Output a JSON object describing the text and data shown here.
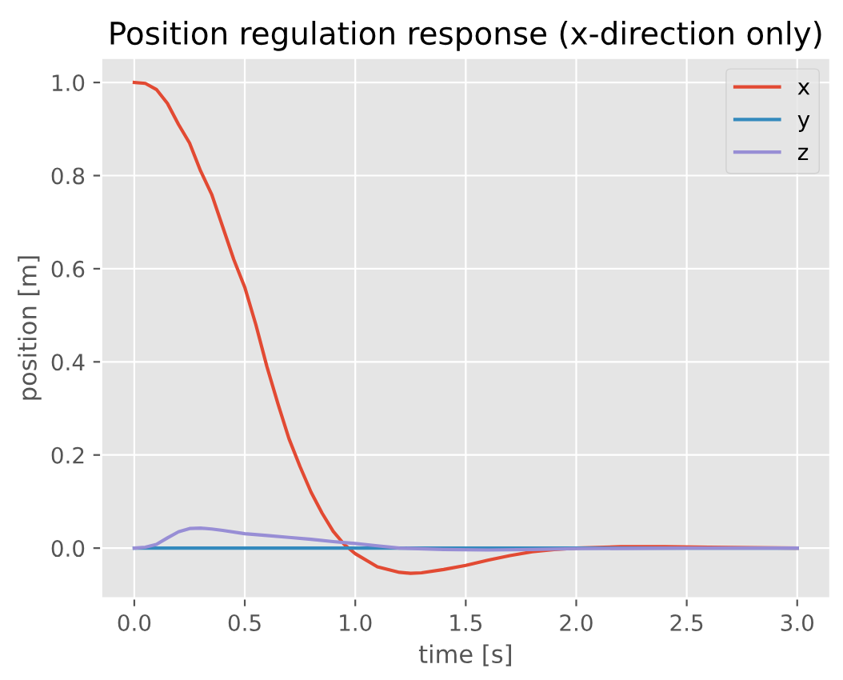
{
  "chart_data": {
    "type": "line",
    "title": "Position regulation response (x-direction only)",
    "xlabel": "time [s]",
    "ylabel": "position [m]",
    "series": [
      {
        "name": "x",
        "color": "#e24a33",
        "x": [
          0,
          0.05,
          0.1,
          0.15,
          0.2,
          0.25,
          0.3,
          0.35,
          0.4,
          0.45,
          0.5,
          0.55,
          0.6,
          0.65,
          0.7,
          0.75,
          0.8,
          0.85,
          0.9,
          0.95,
          1.0,
          1.1,
          1.2,
          1.25,
          1.3,
          1.4,
          1.5,
          1.6,
          1.7,
          1.8,
          1.9,
          2.0,
          2.2,
          2.4,
          2.6,
          2.8,
          3.0
        ],
        "values": [
          1.0,
          0.998,
          0.985,
          0.955,
          0.91,
          0.87,
          0.81,
          0.76,
          0.69,
          0.62,
          0.56,
          0.48,
          0.39,
          0.31,
          0.235,
          0.175,
          0.12,
          0.075,
          0.036,
          0.008,
          -0.012,
          -0.04,
          -0.052,
          -0.054,
          -0.053,
          -0.046,
          -0.037,
          -0.026,
          -0.016,
          -0.008,
          -0.003,
          0.0,
          0.003,
          0.003,
          0.002,
          0.001,
          0.0
        ]
      },
      {
        "name": "y",
        "color": "#348abd",
        "x": [
          0,
          3.0
        ],
        "values": [
          0.0,
          0.0
        ]
      },
      {
        "name": "z",
        "color": "#988ed5",
        "x": [
          0,
          0.05,
          0.1,
          0.15,
          0.2,
          0.25,
          0.3,
          0.35,
          0.4,
          0.5,
          0.6,
          0.7,
          0.8,
          0.9,
          1.0,
          1.1,
          1.2,
          1.4,
          1.6,
          1.8,
          2.0,
          2.5,
          3.0
        ],
        "values": [
          0.0,
          0.002,
          0.008,
          0.022,
          0.035,
          0.042,
          0.043,
          0.041,
          0.038,
          0.031,
          0.027,
          0.023,
          0.019,
          0.014,
          0.01,
          0.005,
          0.0,
          -0.003,
          -0.004,
          -0.003,
          -0.001,
          0.0,
          0.0
        ]
      }
    ],
    "xlim": [
      -0.15,
      3.15
    ],
    "ylim": [
      -0.108,
      1.053
    ],
    "xticks": [
      {
        "value": 0,
        "label": "0.0"
      },
      0.5,
      {
        "value": 1,
        "label": "1.0"
      },
      1.5,
      {
        "value": 2,
        "label": "2.0"
      },
      2.5,
      {
        "value": 3,
        "label": "3.0"
      }
    ],
    "yticks": [
      {
        "value": 0,
        "label": "0.0"
      },
      0.2,
      0.4,
      0.6,
      0.8,
      {
        "value": 1,
        "label": "1.0"
      }
    ],
    "grid": true,
    "legend": "top right",
    "marker": "none",
    "line_style": "solid"
  }
}
